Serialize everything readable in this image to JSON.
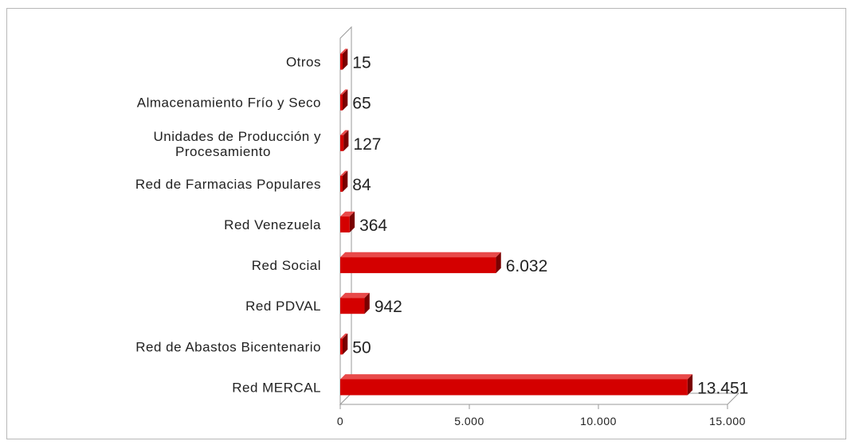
{
  "chart_data": {
    "type": "bar",
    "orientation": "horizontal",
    "style": "3d",
    "categories": [
      "Red MERCAL",
      "Red de Abastos Bicentenario",
      "Red PDVAL",
      "Red Social",
      "Red Venezuela",
      "Red de Farmacias Populares",
      [
        "Unidades de Producción y",
        "Procesamiento"
      ],
      "Almacenamiento Frío y Seco",
      "Otros"
    ],
    "values": [
      13451,
      50,
      942,
      6032,
      364,
      84,
      127,
      65,
      15
    ],
    "value_labels": [
      "13.451",
      "50",
      "942",
      "6.032",
      "364",
      "84",
      "127",
      "65",
      "15"
    ],
    "xlim": [
      0,
      15000
    ],
    "xticks": [
      0,
      5000,
      10000,
      15000
    ],
    "xtick_labels": [
      "0",
      "5.000",
      "10.000",
      "15.000"
    ],
    "title": "",
    "xlabel": "",
    "ylabel": "",
    "legend": "none",
    "grid": false,
    "colors": {
      "bar_front": "#d40000",
      "bar_top": "#e84a4a",
      "bar_side": "#7a0000",
      "axis": "#9a9a9a"
    }
  }
}
